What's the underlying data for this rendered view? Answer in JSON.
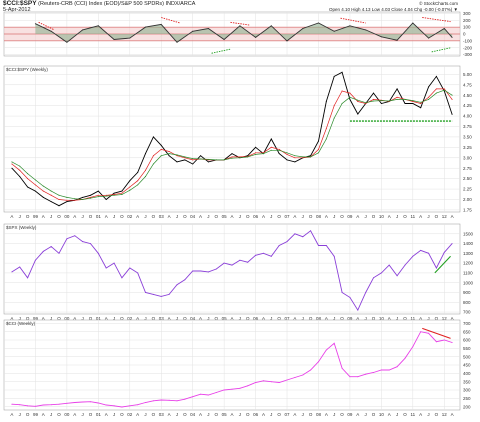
{
  "header": {
    "symbol": "$CCI:$SPY",
    "description": "(Reuters-CRB (CCI) Index (EOD)/S&P 500 SPDRs) INDX/ARCA",
    "date": "5-Apr-2012",
    "source": "© StockCharts.com",
    "ohlc": "Open 4.10  High 4.13  Low 4.03  Close 4.04  Chg -0.00 (-0.07%) ▼"
  },
  "chart_data": [
    {
      "type": "line",
      "title": "",
      "panel": "oscillator",
      "y_ticks": [
        "300",
        "200",
        "100",
        "0",
        "-100",
        "-200",
        "-300"
      ],
      "ylim": [
        -320,
        320
      ],
      "grid": true,
      "reference_band": [
        -100,
        100
      ],
      "x": [
        1999.0,
        1999.5,
        2000.0,
        2000.5,
        2001.0,
        2001.5,
        2002.0,
        2002.5,
        2003.0,
        2003.5,
        2004.0,
        2004.5,
        2005.0,
        2005.5,
        2006.0,
        2006.5,
        2007.0,
        2007.5,
        2008.0,
        2008.5,
        2009.0,
        2009.5,
        2010.0,
        2010.5,
        2011.0,
        2011.5,
        2012.0,
        2012.25
      ],
      "series": [
        {
          "values": [
            150,
            40,
            -120,
            60,
            120,
            -80,
            -60,
            100,
            140,
            -120,
            40,
            80,
            -80,
            120,
            -50,
            120,
            -100,
            80,
            160,
            40,
            120,
            60,
            -40,
            -90,
            160,
            -60,
            80,
            -50
          ]
        }
      ],
      "annotations": [
        {
          "color": "#e02020",
          "from": [
            1999.1,
            170
          ],
          "to": [
            1999.6,
            60
          ]
        },
        {
          "color": "#e02020",
          "from": [
            2003.0,
            240
          ],
          "to": [
            2003.6,
            160
          ]
        },
        {
          "color": "#e02020",
          "from": [
            2005.2,
            170
          ],
          "to": [
            2005.8,
            130
          ]
        },
        {
          "color": "#e02020",
          "from": [
            2008.7,
            230
          ],
          "to": [
            2009.5,
            160
          ]
        },
        {
          "color": "#e02020",
          "from": [
            2011.3,
            240
          ],
          "to": [
            2012.2,
            180
          ]
        },
        {
          "color": "#22a022",
          "from": [
            2004.6,
            -280
          ],
          "to": [
            2005.2,
            -220
          ]
        },
        {
          "color": "#22a022",
          "from": [
            2011.6,
            -260
          ],
          "to": [
            2012.2,
            -200
          ]
        }
      ]
    },
    {
      "type": "line",
      "title": "$CCI:$SPY (Weekly)",
      "y_ticks": [
        "5.00",
        "4.75",
        "4.50",
        "4.25",
        "4.00",
        "3.75",
        "3.50",
        "3.25",
        "3.00",
        "2.75",
        "2.50",
        "2.25",
        "2.00",
        "1.75"
      ],
      "ylim": [
        1.7,
        5.2
      ],
      "grid": true,
      "x_ticks": [
        "A",
        "J",
        "O",
        "99",
        "A",
        "J",
        "O",
        "00",
        "A",
        "J",
        "O",
        "01",
        "A",
        "J",
        "O",
        "02",
        "A",
        "J",
        "O",
        "03",
        "A",
        "J",
        "O",
        "04",
        "A",
        "J",
        "O",
        "05",
        "A",
        "J",
        "O",
        "06",
        "A",
        "J",
        "O",
        "07",
        "A",
        "J",
        "O",
        "08",
        "A",
        "J",
        "O",
        "09",
        "A",
        "J",
        "O",
        "10",
        "A",
        "J",
        "O",
        "11",
        "A",
        "J",
        "O",
        "12",
        "A"
      ],
      "x": [
        1998.25,
        1998.5,
        1998.75,
        1999.0,
        1999.25,
        1999.5,
        1999.75,
        2000.0,
        2000.25,
        2000.5,
        2000.75,
        2001.0,
        2001.25,
        2001.5,
        2001.75,
        2002.0,
        2002.25,
        2002.5,
        2002.75,
        2003.0,
        2003.25,
        2003.5,
        2003.75,
        2004.0,
        2004.25,
        2004.5,
        2004.75,
        2005.0,
        2005.25,
        2005.5,
        2005.75,
        2006.0,
        2006.25,
        2006.5,
        2006.75,
        2007.0,
        2007.25,
        2007.5,
        2007.75,
        2008.0,
        2008.25,
        2008.5,
        2008.75,
        2009.0,
        2009.25,
        2009.5,
        2009.75,
        2010.0,
        2010.25,
        2010.5,
        2010.75,
        2011.0,
        2011.25,
        2011.5,
        2011.75,
        2012.0,
        2012.25
      ],
      "series": [
        {
          "color": "#000000",
          "values": [
            2.75,
            2.55,
            2.3,
            2.2,
            2.05,
            1.95,
            1.85,
            1.95,
            1.98,
            2.05,
            2.1,
            2.2,
            2.0,
            2.15,
            2.2,
            2.45,
            2.65,
            3.1,
            3.5,
            3.3,
            3.05,
            2.9,
            2.95,
            2.85,
            3.05,
            2.9,
            2.95,
            2.95,
            3.1,
            3.0,
            3.05,
            3.25,
            3.1,
            3.45,
            3.1,
            2.95,
            2.9,
            3.0,
            3.05,
            3.4,
            4.35,
            4.95,
            5.05,
            4.4,
            4.05,
            4.3,
            4.55,
            4.3,
            4.35,
            4.65,
            4.3,
            4.3,
            4.2,
            4.7,
            4.95,
            4.6,
            4.04
          ]
        },
        {
          "color": "#e02020",
          "values": [
            2.85,
            2.7,
            2.5,
            2.35,
            2.2,
            2.1,
            2.0,
            1.98,
            1.98,
            2.0,
            2.05,
            2.1,
            2.1,
            2.12,
            2.15,
            2.3,
            2.45,
            2.7,
            3.05,
            3.2,
            3.15,
            3.05,
            3.0,
            2.95,
            2.97,
            2.95,
            2.95,
            2.95,
            3.02,
            3.02,
            3.03,
            3.12,
            3.12,
            3.25,
            3.2,
            3.08,
            3.0,
            3.0,
            3.02,
            3.2,
            3.7,
            4.25,
            4.6,
            4.55,
            4.35,
            4.3,
            4.4,
            4.38,
            4.35,
            4.45,
            4.4,
            4.35,
            4.3,
            4.45,
            4.65,
            4.65,
            4.4
          ]
        },
        {
          "color": "#2a8a2a",
          "values": [
            2.9,
            2.8,
            2.62,
            2.47,
            2.32,
            2.2,
            2.1,
            2.05,
            2.02,
            2.0,
            2.03,
            2.07,
            2.08,
            2.1,
            2.12,
            2.22,
            2.35,
            2.55,
            2.85,
            3.05,
            3.1,
            3.07,
            3.02,
            2.98,
            2.97,
            2.96,
            2.95,
            2.95,
            2.99,
            3.0,
            3.02,
            3.08,
            3.1,
            3.18,
            3.18,
            3.12,
            3.05,
            3.02,
            3.02,
            3.12,
            3.45,
            3.95,
            4.3,
            4.45,
            4.38,
            4.32,
            4.36,
            4.37,
            4.36,
            4.4,
            4.4,
            4.37,
            4.33,
            4.4,
            4.55,
            4.62,
            4.5
          ]
        }
      ],
      "support_line": {
        "color": "#22a022",
        "y": 3.88,
        "x_from": 2009.0,
        "x_to": 2012.25
      }
    },
    {
      "type": "line",
      "title": "$SPX (Weekly)",
      "y_ticks": [
        "1500",
        "1400",
        "1300",
        "1200",
        "1100",
        "1000",
        "900",
        "800",
        "700"
      ],
      "ylim": [
        680,
        1600
      ],
      "grid": true,
      "x": [
        1998.25,
        1998.5,
        1998.75,
        1999.0,
        1999.25,
        1999.5,
        1999.75,
        2000.0,
        2000.25,
        2000.5,
        2000.75,
        2001.0,
        2001.25,
        2001.5,
        2001.75,
        2002.0,
        2002.25,
        2002.5,
        2002.75,
        2003.0,
        2003.25,
        2003.5,
        2003.75,
        2004.0,
        2004.25,
        2004.5,
        2004.75,
        2005.0,
        2005.25,
        2005.5,
        2005.75,
        2006.0,
        2006.25,
        2006.5,
        2006.75,
        2007.0,
        2007.25,
        2007.5,
        2007.75,
        2008.0,
        2008.25,
        2008.5,
        2008.75,
        2009.0,
        2009.25,
        2009.5,
        2009.75,
        2010.0,
        2010.25,
        2010.5,
        2010.75,
        2011.0,
        2011.25,
        2011.5,
        2011.75,
        2012.0,
        2012.25
      ],
      "series": [
        {
          "color": "#8a3fd8",
          "values": [
            1110,
            1160,
            1050,
            1230,
            1320,
            1370,
            1300,
            1450,
            1480,
            1420,
            1400,
            1300,
            1150,
            1200,
            1050,
            1150,
            1100,
            900,
            880,
            860,
            880,
            980,
            1030,
            1120,
            1120,
            1110,
            1140,
            1200,
            1180,
            1230,
            1210,
            1280,
            1300,
            1270,
            1380,
            1420,
            1500,
            1470,
            1530,
            1380,
            1380,
            1270,
            900,
            850,
            720,
            900,
            1050,
            1100,
            1180,
            1070,
            1180,
            1270,
            1330,
            1300,
            1150,
            1310,
            1400
          ]
        }
      ],
      "trend_line": {
        "color": "#22a022",
        "from": [
          2011.7,
          1100
        ],
        "to": [
          2012.2,
          1270
        ]
      }
    },
    {
      "type": "line",
      "title": "$CCI (Weekly)",
      "y_ticks": [
        "700",
        "650",
        "600",
        "550",
        "500",
        "450",
        "400",
        "350",
        "300",
        "250",
        "200"
      ],
      "ylim": [
        180,
        720
      ],
      "grid": true,
      "x": [
        1998.25,
        1998.5,
        1998.75,
        1999.0,
        1999.25,
        1999.5,
        1999.75,
        2000.0,
        2000.25,
        2000.5,
        2000.75,
        2001.0,
        2001.25,
        2001.5,
        2001.75,
        2002.0,
        2002.25,
        2002.5,
        2002.75,
        2003.0,
        2003.25,
        2003.5,
        2003.75,
        2004.0,
        2004.25,
        2004.5,
        2004.75,
        2005.0,
        2005.25,
        2005.5,
        2005.75,
        2006.0,
        2006.25,
        2006.5,
        2006.75,
        2007.0,
        2007.25,
        2007.5,
        2007.75,
        2008.0,
        2008.25,
        2008.5,
        2008.75,
        2009.0,
        2009.25,
        2009.5,
        2009.75,
        2010.0,
        2010.25,
        2010.5,
        2010.75,
        2011.0,
        2011.25,
        2011.5,
        2011.75,
        2012.0,
        2012.25
      ],
      "series": [
        {
          "color": "#e840e8",
          "values": [
            215,
            212,
            205,
            202,
            210,
            212,
            215,
            220,
            225,
            228,
            230,
            222,
            210,
            205,
            198,
            205,
            212,
            225,
            235,
            240,
            238,
            235,
            245,
            260,
            275,
            270,
            285,
            300,
            305,
            310,
            325,
            345,
            355,
            350,
            345,
            360,
            375,
            390,
            420,
            470,
            540,
            580,
            430,
            380,
            380,
            395,
            405,
            420,
            420,
            440,
            490,
            560,
            650,
            640,
            590,
            600,
            585
          ]
        }
      ],
      "trend_line": {
        "color": "#e02020",
        "from": [
          2011.3,
          670
        ],
        "to": [
          2012.2,
          610
        ]
      }
    }
  ]
}
